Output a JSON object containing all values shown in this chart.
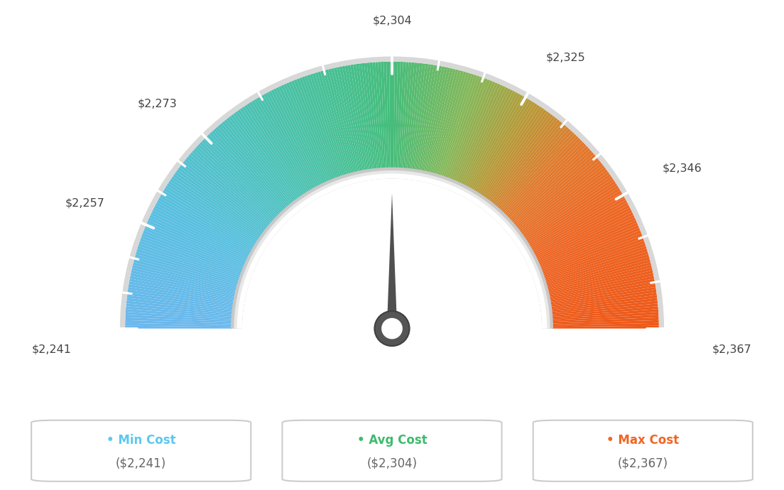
{
  "min_val": 2241,
  "avg_val": 2304,
  "max_val": 2367,
  "tick_labels": [
    "$2,241",
    "$2,257",
    "$2,273",
    "$2,304",
    "$2,325",
    "$2,346",
    "$2,367"
  ],
  "tick_values": [
    2241,
    2257,
    2273,
    2304,
    2325,
    2346,
    2367
  ],
  "legend_min_color": "#5bc8f0",
  "legend_avg_color": "#3dba6e",
  "legend_max_color": "#f26522",
  "background_color": "#ffffff",
  "gauge_colors": [
    [
      0.0,
      [
        0.42,
        0.72,
        0.93
      ]
    ],
    [
      0.15,
      [
        0.35,
        0.75,
        0.88
      ]
    ],
    [
      0.3,
      [
        0.3,
        0.76,
        0.72
      ]
    ],
    [
      0.45,
      [
        0.28,
        0.75,
        0.55
      ]
    ],
    [
      0.5,
      [
        0.27,
        0.74,
        0.48
      ]
    ],
    [
      0.6,
      [
        0.52,
        0.72,
        0.35
      ]
    ],
    [
      0.68,
      [
        0.72,
        0.6,
        0.22
      ]
    ],
    [
      0.75,
      [
        0.88,
        0.48,
        0.18
      ]
    ],
    [
      0.85,
      [
        0.93,
        0.4,
        0.14
      ]
    ],
    [
      1.0,
      [
        0.93,
        0.35,
        0.1
      ]
    ]
  ],
  "needle_color": "#505050",
  "needle_pivot_outer": "#555555",
  "needle_pivot_inner": "#ffffff",
  "outer_border_color": "#d8d8d8",
  "inner_arc_color": "#d8d8d8"
}
